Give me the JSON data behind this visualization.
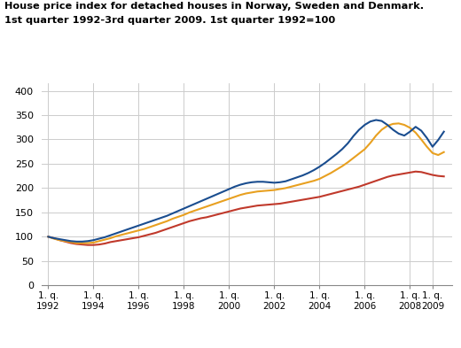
{
  "title_line1": "House price index for detached houses in Norway, Sweden and Denmark.",
  "title_line2": "1st quarter 1992-3rd quarter 2009. 1st quarter 1992=100",
  "yticks": [
    0,
    50,
    100,
    150,
    200,
    250,
    300,
    350,
    400
  ],
  "ylim": [
    0,
    415
  ],
  "xlim_start": 1991.7,
  "xlim_end": 2009.85,
  "xtick_labels": [
    "1. q.\n1992",
    "1. q.\n1994",
    "1. q.\n1996",
    "1. q.\n1998",
    "1. q.\n2000",
    "1. q.\n2002",
    "1. q.\n2004",
    "1. q.\n2006",
    "1. q.\n2008",
    "1. q.\n2009"
  ],
  "xtick_values": [
    1992.0,
    1994.0,
    1996.0,
    1998.0,
    2000.0,
    2002.0,
    2004.0,
    2006.0,
    2008.0,
    2009.0
  ],
  "sweden_color": "#c0392b",
  "denmark_color": "#e8a020",
  "norway_color": "#1a4d8f",
  "background_color": "#ffffff",
  "grid_color": "#cccccc",
  "sweden": {
    "x": [
      1992.0,
      1992.25,
      1992.5,
      1992.75,
      1993.0,
      1993.25,
      1993.5,
      1993.75,
      1994.0,
      1994.25,
      1994.5,
      1994.75,
      1995.0,
      1995.25,
      1995.5,
      1995.75,
      1996.0,
      1996.25,
      1996.5,
      1996.75,
      1997.0,
      1997.25,
      1997.5,
      1997.75,
      1998.0,
      1998.25,
      1998.5,
      1998.75,
      1999.0,
      1999.25,
      1999.5,
      1999.75,
      2000.0,
      2000.25,
      2000.5,
      2000.75,
      2001.0,
      2001.25,
      2001.5,
      2001.75,
      2002.0,
      2002.25,
      2002.5,
      2002.75,
      2003.0,
      2003.25,
      2003.5,
      2003.75,
      2004.0,
      2004.25,
      2004.5,
      2004.75,
      2005.0,
      2005.25,
      2005.5,
      2005.75,
      2006.0,
      2006.25,
      2006.5,
      2006.75,
      2007.0,
      2007.25,
      2007.5,
      2007.75,
      2008.0,
      2008.25,
      2008.5,
      2008.75,
      2009.0,
      2009.25,
      2009.5
    ],
    "y": [
      100,
      97,
      93,
      90,
      87,
      85,
      84,
      83,
      83,
      84,
      86,
      89,
      91,
      93,
      95,
      97,
      99,
      102,
      105,
      108,
      112,
      116,
      120,
      124,
      128,
      132,
      135,
      138,
      140,
      143,
      146,
      149,
      152,
      155,
      158,
      160,
      162,
      164,
      165,
      166,
      167,
      168,
      170,
      172,
      174,
      176,
      178,
      180,
      182,
      185,
      188,
      191,
      194,
      197,
      200,
      203,
      207,
      211,
      215,
      219,
      223,
      226,
      228,
      230,
      232,
      234,
      233,
      230,
      227,
      225,
      224
    ]
  },
  "denmark": {
    "x": [
      1992.0,
      1992.25,
      1992.5,
      1992.75,
      1993.0,
      1993.25,
      1993.5,
      1993.75,
      1994.0,
      1994.25,
      1994.5,
      1994.75,
      1995.0,
      1995.25,
      1995.5,
      1995.75,
      1996.0,
      1996.25,
      1996.5,
      1996.75,
      1997.0,
      1997.25,
      1997.5,
      1997.75,
      1998.0,
      1998.25,
      1998.5,
      1998.75,
      1999.0,
      1999.25,
      1999.5,
      1999.75,
      2000.0,
      2000.25,
      2000.5,
      2000.75,
      2001.0,
      2001.25,
      2001.5,
      2001.75,
      2002.0,
      2002.25,
      2002.5,
      2002.75,
      2003.0,
      2003.25,
      2003.5,
      2003.75,
      2004.0,
      2004.25,
      2004.5,
      2004.75,
      2005.0,
      2005.25,
      2005.5,
      2005.75,
      2006.0,
      2006.25,
      2006.5,
      2006.75,
      2007.0,
      2007.25,
      2007.5,
      2007.75,
      2008.0,
      2008.25,
      2008.5,
      2008.75,
      2009.0,
      2009.25,
      2009.5
    ],
    "y": [
      100,
      96,
      93,
      91,
      89,
      87,
      87,
      87,
      88,
      91,
      94,
      97,
      101,
      104,
      107,
      110,
      113,
      116,
      120,
      124,
      128,
      132,
      137,
      141,
      145,
      150,
      154,
      158,
      162,
      166,
      170,
      174,
      178,
      182,
      186,
      189,
      191,
      193,
      194,
      195,
      196,
      198,
      200,
      203,
      206,
      209,
      212,
      215,
      219,
      225,
      231,
      238,
      245,
      253,
      262,
      271,
      280,
      293,
      308,
      320,
      328,
      332,
      333,
      330,
      324,
      314,
      300,
      285,
      272,
      268,
      274
    ]
  },
  "norway": {
    "x": [
      1992.0,
      1992.25,
      1992.5,
      1992.75,
      1993.0,
      1993.25,
      1993.5,
      1993.75,
      1994.0,
      1994.25,
      1994.5,
      1994.75,
      1995.0,
      1995.25,
      1995.5,
      1995.75,
      1996.0,
      1996.25,
      1996.5,
      1996.75,
      1997.0,
      1997.25,
      1997.5,
      1997.75,
      1998.0,
      1998.25,
      1998.5,
      1998.75,
      1999.0,
      1999.25,
      1999.5,
      1999.75,
      2000.0,
      2000.25,
      2000.5,
      2000.75,
      2001.0,
      2001.25,
      2001.5,
      2001.75,
      2002.0,
      2002.25,
      2002.5,
      2002.75,
      2003.0,
      2003.25,
      2003.5,
      2003.75,
      2004.0,
      2004.25,
      2004.5,
      2004.75,
      2005.0,
      2005.25,
      2005.5,
      2005.75,
      2006.0,
      2006.25,
      2006.5,
      2006.75,
      2007.0,
      2007.25,
      2007.5,
      2007.75,
      2008.0,
      2008.25,
      2008.5,
      2008.75,
      2009.0,
      2009.25,
      2009.5
    ],
    "y": [
      100,
      97,
      95,
      93,
      91,
      90,
      90,
      91,
      93,
      96,
      99,
      103,
      107,
      111,
      115,
      119,
      123,
      127,
      131,
      135,
      139,
      143,
      148,
      153,
      158,
      163,
      168,
      173,
      178,
      183,
      188,
      193,
      198,
      203,
      207,
      210,
      212,
      213,
      213,
      212,
      211,
      212,
      214,
      218,
      222,
      226,
      231,
      237,
      244,
      252,
      261,
      270,
      280,
      292,
      307,
      320,
      330,
      337,
      340,
      338,
      330,
      320,
      312,
      308,
      316,
      326,
      318,
      303,
      285,
      299,
      316
    ]
  }
}
